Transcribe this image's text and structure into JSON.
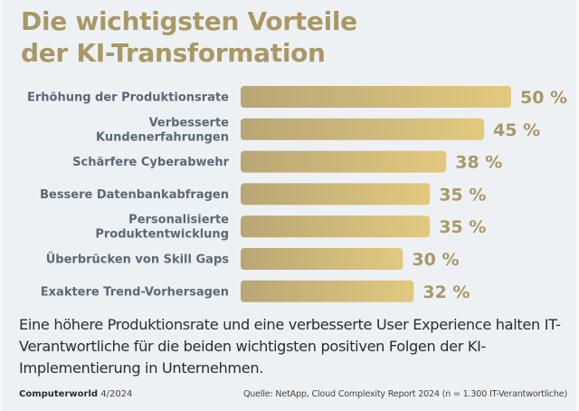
{
  "title": {
    "line1": "Die wichtigsten Vorteile",
    "line2": "der KI-Transformation"
  },
  "chart_data": {
    "type": "bar",
    "orientation": "horizontal",
    "title": "Die wichtigsten Vorteile der KI-Transformation",
    "xlabel": "",
    "ylabel": "",
    "unit": "%",
    "categories": [
      [
        "Erhöhung der Produktionsrate"
      ],
      [
        "Verbesserte",
        "Kundenerfahrungen"
      ],
      [
        "Schärfere Cyberabwehr"
      ],
      [
        "Bessere Datenbankabfragen"
      ],
      [
        "Personalisierte",
        "Produktentwicklung"
      ],
      [
        "Überbrücken von Skill Gaps"
      ],
      [
        "Exaktere Trend-Vorhersagen"
      ]
    ],
    "values": [
      50,
      45,
      38,
      35,
      35,
      30,
      32
    ],
    "value_labels": [
      "50 %",
      "45 %",
      "38 %",
      "35 %",
      "35 %",
      "30 %",
      "32 %"
    ],
    "xlim": [
      0,
      50
    ],
    "grid": false,
    "legend": "none",
    "colors": {
      "bar_start": "#b8a675",
      "bar_end": "#e3c97e",
      "value_text": "#a89868",
      "label_text": "#5d6872"
    }
  },
  "caption": "Eine höhere Produktionsrate und eine verbesserte User Experience halten IT-Verantwortliche für die beiden wichtigsten positiven Folgen der KI-Implementierung in Unternehmen.",
  "footer": {
    "brand": "Computerworld",
    "issue": "4/2024",
    "source": "Quelle: NetApp, Cloud Complexity Report 2024 (n = 1.300 IT-Verantwortliche)"
  }
}
